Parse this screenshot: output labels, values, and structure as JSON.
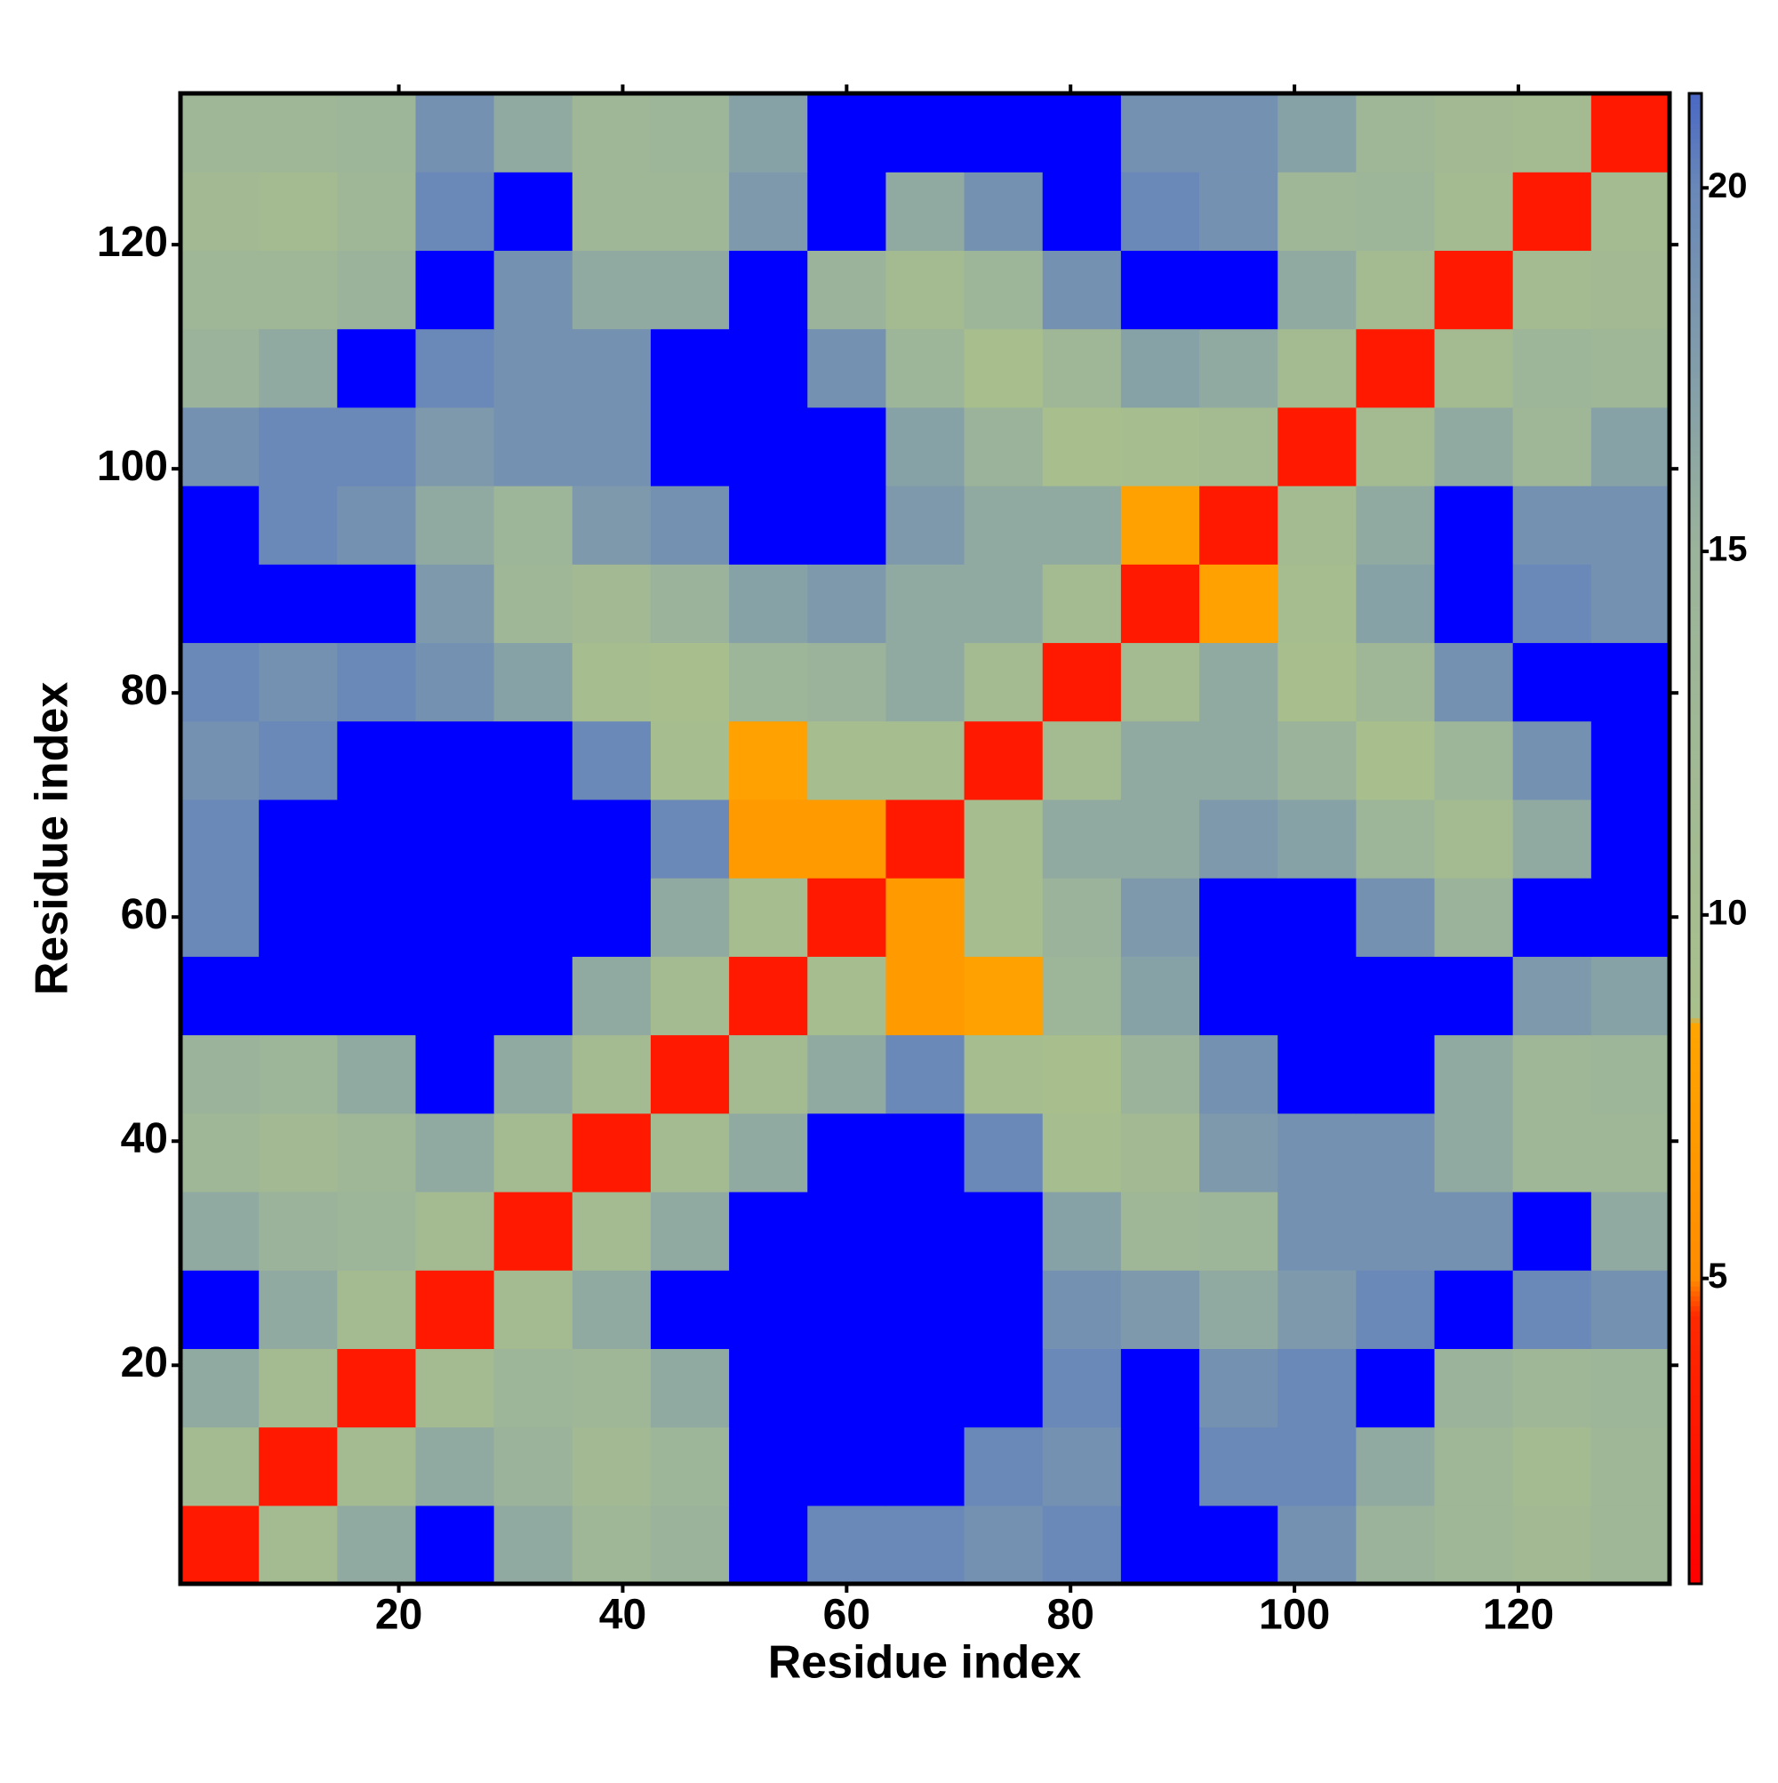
{
  "chart_data": {
    "type": "heatmap",
    "x_label": "Residue index",
    "y_label": "Residue index",
    "xlim": [
      0.5,
      133.5
    ],
    "ylim": [
      0.5,
      133.5
    ],
    "xticks": [
      20,
      40,
      60,
      80,
      100,
      120
    ],
    "yticks": [
      20,
      40,
      60,
      80,
      100,
      120
    ],
    "x_bins": [
      0.5,
      7.5,
      14.5,
      21.5,
      28.5,
      35.5,
      42.5,
      49.5,
      56.5,
      63.5,
      70.5,
      77.5,
      84.5,
      91.5,
      98.5,
      105.5,
      112.5,
      119.5,
      126.5,
      133.5
    ],
    "y_bins": [
      0.5,
      7.5,
      14.5,
      21.5,
      28.5,
      35.5,
      42.5,
      49.5,
      56.5,
      63.5,
      70.5,
      77.5,
      84.5,
      91.5,
      98.5,
      105.5,
      112.5,
      119.5,
      126.5,
      133.5
    ],
    "values": [
      [
        3,
        11,
        16,
        24,
        16,
        13,
        15,
        24,
        20,
        20,
        19,
        20,
        24,
        24,
        19,
        15,
        13,
        12,
        13
      ],
      [
        11,
        3,
        11,
        16,
        15,
        12,
        14,
        24,
        24,
        24,
        20,
        19,
        24,
        20,
        20,
        16,
        13,
        11,
        13
      ],
      [
        16,
        11,
        3,
        11,
        14,
        13,
        16,
        24,
        24,
        24,
        24,
        20,
        24,
        19,
        20,
        24,
        15,
        13,
        14
      ],
      [
        24,
        16,
        11,
        3,
        11,
        16,
        24,
        24,
        24,
        24,
        24,
        19,
        18,
        16,
        18,
        20,
        24,
        20,
        19
      ],
      [
        16,
        15,
        14,
        11,
        3,
        11,
        16,
        24,
        24,
        24,
        24,
        17,
        13,
        14,
        19,
        19,
        19,
        24,
        16
      ],
      [
        13,
        12,
        13,
        16,
        11,
        3,
        11,
        16,
        24,
        24,
        20,
        10,
        12,
        18,
        19,
        19,
        16,
        13,
        13
      ],
      [
        15,
        14,
        16,
        24,
        16,
        11,
        3,
        11,
        16,
        20,
        10,
        9,
        15,
        19,
        24,
        24,
        16,
        13,
        14
      ],
      [
        24,
        24,
        24,
        24,
        24,
        16,
        11,
        3,
        10,
        7,
        8,
        14,
        17,
        24,
        24,
        24,
        24,
        18,
        17
      ],
      [
        20,
        24,
        24,
        24,
        24,
        24,
        16,
        10,
        3,
        7,
        10,
        15,
        18,
        24,
        24,
        19,
        15,
        24,
        24
      ],
      [
        20,
        24,
        24,
        24,
        24,
        24,
        20,
        7,
        7,
        3,
        10,
        16,
        16,
        18,
        17,
        14,
        11,
        16,
        24
      ],
      [
        19,
        20,
        24,
        24,
        24,
        20,
        10,
        8,
        10,
        10,
        3,
        11,
        16,
        16,
        15,
        9,
        14,
        19,
        24
      ],
      [
        20,
        19,
        20,
        19,
        17,
        10,
        9,
        14,
        15,
        16,
        11,
        3,
        11,
        16,
        9,
        13,
        19,
        24,
        24
      ],
      [
        24,
        24,
        24,
        18,
        13,
        12,
        15,
        17,
        18,
        16,
        16,
        11,
        3,
        8,
        10,
        17,
        24,
        20,
        19
      ],
      [
        24,
        20,
        19,
        16,
        14,
        18,
        19,
        24,
        24,
        18,
        16,
        16,
        8,
        3,
        11,
        16,
        24,
        19,
        19
      ],
      [
        19,
        20,
        20,
        18,
        19,
        19,
        24,
        24,
        24,
        17,
        15,
        9,
        10,
        11,
        3,
        11,
        16,
        13,
        17
      ],
      [
        15,
        16,
        24,
        20,
        19,
        19,
        24,
        24,
        19,
        14,
        9,
        13,
        17,
        16,
        11,
        3,
        11,
        14,
        13
      ],
      [
        13,
        13,
        15,
        24,
        19,
        16,
        16,
        24,
        15,
        11,
        14,
        19,
        24,
        24,
        16,
        11,
        3,
        11,
        12
      ],
      [
        12,
        11,
        13,
        20,
        24,
        13,
        13,
        18,
        24,
        16,
        19,
        24,
        20,
        19,
        13,
        14,
        11,
        3,
        11
      ],
      [
        13,
        13,
        14,
        19,
        16,
        13,
        14,
        17,
        24,
        24,
        24,
        24,
        19,
        19,
        17,
        13,
        12,
        11,
        3
      ]
    ],
    "colorbar_lim": [
      0.8,
      21.3
    ],
    "colorbar_ticks": [
      5,
      10,
      15,
      20
    ],
    "colorscale": [
      [
        0.8,
        "#ff0000"
      ],
      [
        4.5,
        "#ff2a00"
      ],
      [
        5,
        "#ff8c00"
      ],
      [
        8.5,
        "#ffa500"
      ],
      [
        8.6,
        "#a9c08c"
      ],
      [
        15,
        "#9bb39b"
      ],
      [
        20,
        "#6a88b8"
      ],
      [
        21.3,
        "#4a68c4"
      ]
    ],
    "over_color": "#0000ff"
  }
}
